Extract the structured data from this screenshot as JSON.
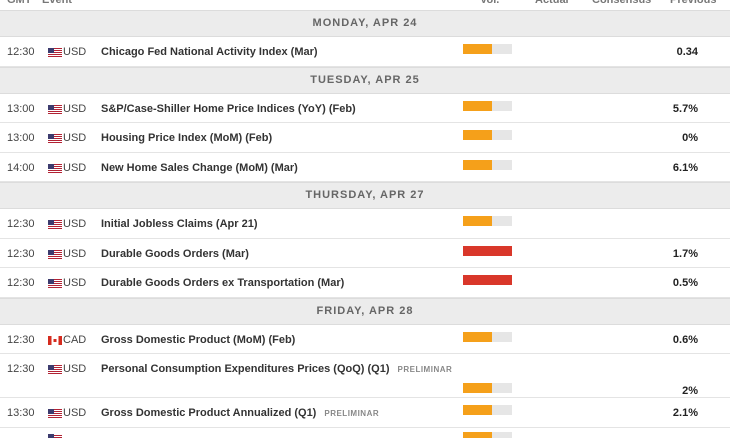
{
  "header": {
    "columns": [
      "GMT",
      "Event",
      "Vol.",
      "Actual",
      "Consensus",
      "Previous"
    ]
  },
  "days": [
    {
      "label": "MONDAY, APR 24",
      "events": [
        {
          "time": "12:30",
          "currency": "USD",
          "event": "Chicago Fed National Activity Index (Mar)",
          "volatility": "medium",
          "previous": "0.34"
        }
      ]
    },
    {
      "label": "TUESDAY, APR 25",
      "events": [
        {
          "time": "13:00",
          "currency": "USD",
          "event": "S&P/Case-Shiller Home Price Indices (YoY) (Feb)",
          "volatility": "medium",
          "previous": "5.7%"
        },
        {
          "time": "13:00",
          "currency": "USD",
          "event": "Housing Price Index (MoM) (Feb)",
          "volatility": "medium",
          "previous": "0%"
        },
        {
          "time": "14:00",
          "currency": "USD",
          "event": "New Home Sales Change (MoM) (Mar)",
          "volatility": "medium",
          "previous": "6.1%"
        }
      ]
    },
    {
      "label": "THURSDAY, APR 27",
      "events": [
        {
          "time": "12:30",
          "currency": "USD",
          "event": "Initial Jobless Claims (Apr 21)",
          "volatility": "medium"
        },
        {
          "time": "12:30",
          "currency": "USD",
          "event": "Durable Goods Orders (Mar)",
          "volatility": "high",
          "previous": "1.7%"
        },
        {
          "time": "12:30",
          "currency": "USD",
          "event": "Durable Goods Orders ex Transportation (Mar)",
          "volatility": "high",
          "previous": "0.5%"
        }
      ]
    },
    {
      "label": "FRIDAY, APR 28",
      "events": [
        {
          "time": "12:30",
          "currency": "CAD",
          "event": "Gross Domestic Product (MoM) (Feb)",
          "volatility": "medium",
          "previous": "0.6%"
        },
        {
          "time": "12:30",
          "currency": "USD",
          "event": "Personal Consumption Expenditures Prices (QoQ) (Q1)",
          "tag": "PRELIMINAR",
          "volatility": "medium",
          "previous": "2%"
        },
        {
          "time": "13:30",
          "currency": "USD",
          "event": "Gross Domestic Product Annualized (Q1)",
          "tag": "PRELIMINAR",
          "volatility": "medium",
          "previous": "2.1%"
        }
      ]
    }
  ]
}
